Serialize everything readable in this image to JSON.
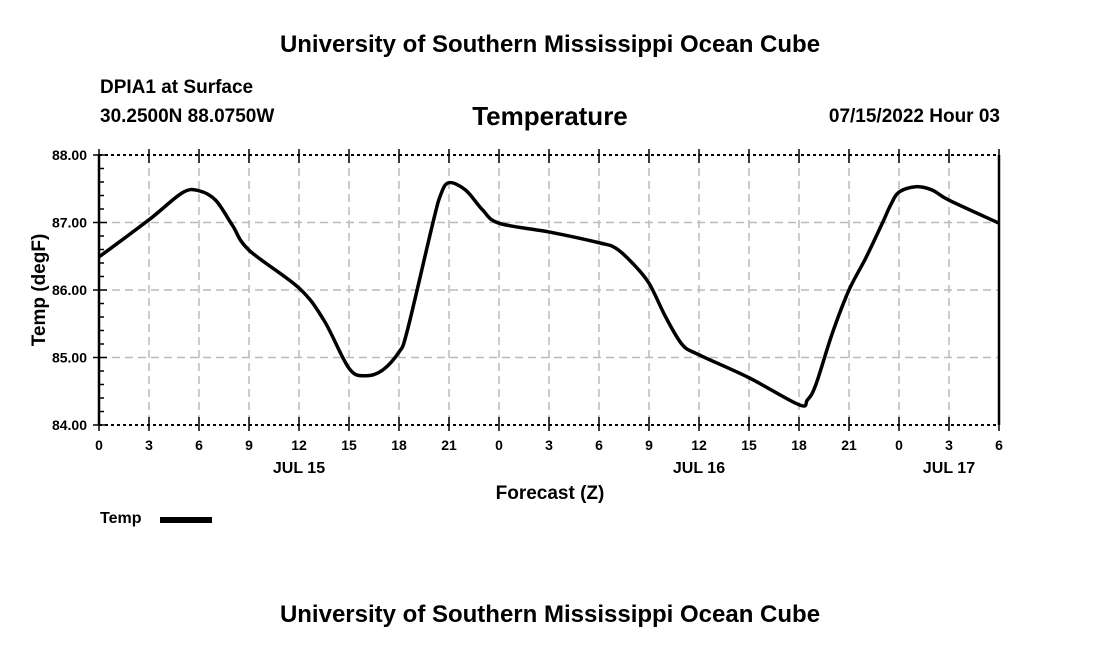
{
  "header": {
    "title": "University of Southern Mississippi Ocean Cube",
    "station": "DPIA1 at Surface",
    "coords": "30.2500N  88.0750W",
    "datetime": "07/15/2022 Hour 03"
  },
  "footer": {
    "title": "University of Southern Mississippi Ocean Cube"
  },
  "chart_data": {
    "type": "line",
    "title": "Temperature",
    "xlabel": "Forecast (Z)",
    "ylabel": "Temp (degF)",
    "xlim_hours": [
      0,
      54
    ],
    "ylim": [
      84,
      88
    ],
    "grid": true,
    "x_tick_labels": [
      "0",
      "3",
      "6",
      "9",
      "12",
      "15",
      "18",
      "21",
      "0",
      "3",
      "6",
      "9",
      "12",
      "15",
      "18",
      "21",
      "0",
      "3",
      "6"
    ],
    "y_tick_labels": [
      "84.00",
      "85.00",
      "86.00",
      "87.00",
      "88.00"
    ],
    "y_ticks": [
      84,
      85,
      86,
      87,
      88
    ],
    "date_labels": [
      {
        "label": "JUL 15",
        "hour": 12
      },
      {
        "label": "JUL 16",
        "hour": 36
      },
      {
        "label": "JUL 17",
        "hour": 51
      }
    ],
    "legend": {
      "label": "Temp",
      "placement": "bottom-left"
    },
    "series": [
      {
        "name": "Temp",
        "color": "#000000",
        "x_hours": [
          0,
          3,
          5,
          6,
          7,
          8,
          9,
          12,
          13.5,
          15,
          16,
          17,
          18,
          18.5,
          20,
          20.5,
          21,
          22,
          23,
          24,
          27,
          30,
          31,
          32,
          33,
          34,
          35,
          36,
          39,
          42,
          42.5,
          43,
          44,
          45,
          46,
          47,
          47.5,
          48,
          49,
          50,
          51,
          54
        ],
        "values": [
          86.49,
          87.04,
          87.44,
          87.47,
          87.33,
          86.96,
          86.59,
          86.03,
          85.55,
          84.84,
          84.73,
          84.81,
          85.08,
          85.4,
          86.96,
          87.41,
          87.59,
          87.48,
          87.19,
          86.99,
          86.86,
          86.7,
          86.62,
          86.4,
          86.1,
          85.6,
          85.19,
          85.04,
          84.7,
          84.3,
          84.37,
          84.59,
          85.36,
          86.0,
          86.47,
          86.99,
          87.26,
          87.45,
          87.53,
          87.48,
          87.33,
          86.99
        ]
      }
    ]
  }
}
